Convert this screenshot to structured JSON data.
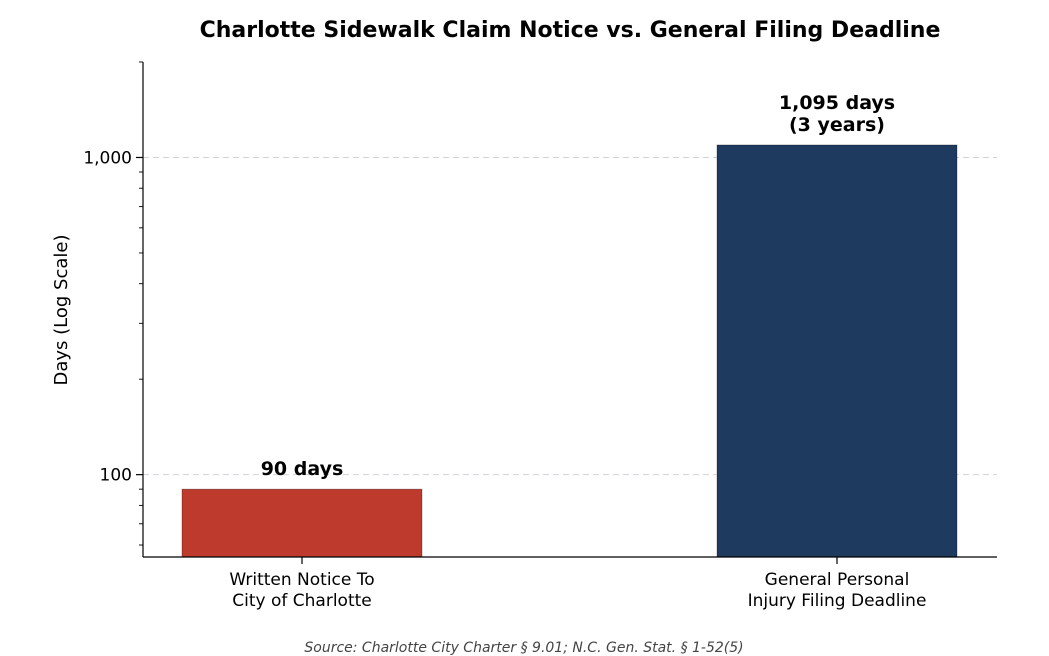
{
  "chart_data": {
    "type": "bar",
    "title": "Charlotte Sidewalk Claim Notice vs. General Filing Deadline",
    "ylabel": "Days (Log Scale)",
    "xlabel": "",
    "yscale": "log",
    "ylim": [
      55,
      2000
    ],
    "yticks": [
      100,
      1000
    ],
    "ytick_labels": [
      "100",
      "1,000"
    ],
    "grid": "horizontal dashed at major ticks",
    "categories": [
      [
        "Written Notice To",
        "City of Charlotte"
      ],
      [
        "General Personal",
        "Injury Filing Deadline"
      ]
    ],
    "values": [
      90,
      1095
    ],
    "bar_labels": [
      [
        "90 days"
      ],
      [
        "1,095 days",
        "(3 years)"
      ]
    ],
    "colors": [
      "#bd3a2c",
      "#1e3a5f"
    ],
    "source": "Source: Charlotte City Charter § 9.01; N.C. Gen. Stat. § 1-52(5)"
  }
}
